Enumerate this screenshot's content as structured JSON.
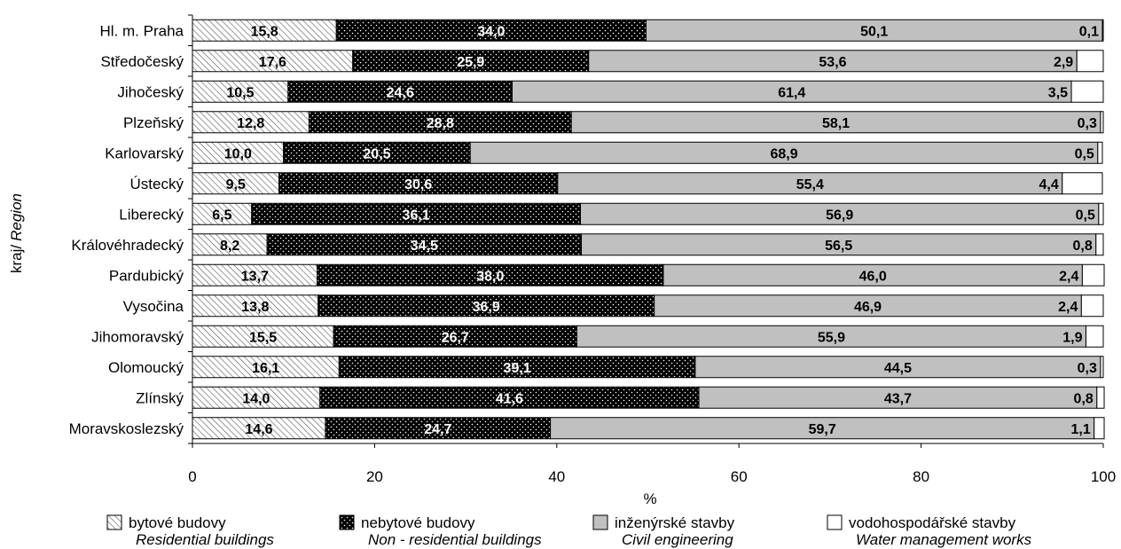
{
  "chart_data": {
    "type": "bar",
    "orientation": "horizontal",
    "stacked": true,
    "categories": [
      "Hl. m. Praha",
      "Středočeský",
      "Jihočeský",
      "Plzeňský",
      "Karlovarský",
      "Ústecký",
      "Liberecký",
      "Královéhradecký",
      "Pardubický",
      "Vysočina",
      "Jihomoravský",
      "Olomoucký",
      "Zlínský",
      "Moravskoslezský"
    ],
    "series": [
      {
        "name": "bytové budovy",
        "name_en": "Residential buildings",
        "pattern": "hatch",
        "color": "#ffffff",
        "values": [
          15.8,
          17.6,
          10.5,
          12.8,
          10.0,
          9.5,
          6.5,
          8.2,
          13.7,
          13.8,
          15.5,
          16.1,
          14.0,
          14.6
        ]
      },
      {
        "name": "nebytové budovy",
        "name_en": "Non - residential buildings",
        "pattern": "dots",
        "color": "#000000",
        "values": [
          34.0,
          25.9,
          24.6,
          28.8,
          20.5,
          30.6,
          36.1,
          34.5,
          38.0,
          36.9,
          26.7,
          39.1,
          41.6,
          24.7
        ]
      },
      {
        "name": "inženýrské stavby",
        "name_en": "Civil engineering",
        "pattern": "solid",
        "color": "#c0c0c0",
        "values": [
          50.1,
          53.6,
          61.4,
          58.1,
          68.9,
          55.4,
          56.9,
          56.5,
          46.0,
          46.9,
          55.9,
          44.5,
          43.7,
          59.7
        ]
      },
      {
        "name": "vodohospodářské stavby",
        "name_en": "Water management works",
        "pattern": "solid",
        "color": "#ffffff",
        "values": [
          0.1,
          2.9,
          3.5,
          0.3,
          0.5,
          4.4,
          0.5,
          0.8,
          2.4,
          2.4,
          1.9,
          0.3,
          0.8,
          1.1
        ]
      }
    ],
    "value_labels": [
      [
        "15,8",
        "17,6",
        "10,5",
        "12,8",
        "10,0",
        "9,5",
        "6,5",
        "8,2",
        "13,7",
        "13,8",
        "15,5",
        "16,1",
        "14,0",
        "14,6"
      ],
      [
        "34,0",
        "25,9",
        "24,6",
        "28,8",
        "20,5",
        "30,6",
        "36,1",
        "34,5",
        "38,0",
        "36,9",
        "26,7",
        "39,1",
        "41,6",
        "24,7"
      ],
      [
        "50,1",
        "53,6",
        "61,4",
        "58,1",
        "68,9",
        "55,4",
        "56,9",
        "56,5",
        "46,0",
        "46,9",
        "55,9",
        "44,5",
        "43,7",
        "59,7"
      ],
      [
        "0,1",
        "2,9",
        "3,5",
        "0,3",
        "0,5",
        "4,4",
        "0,5",
        "0,8",
        "2,4",
        "2,4",
        "1,9",
        "0,3",
        "0,8",
        "1,1"
      ]
    ],
    "xlabel": "%",
    "ylabel_cz": "kraj/",
    "ylabel_en": "Region",
    "xlim": [
      0,
      100
    ],
    "xticks": [
      "0",
      "20",
      "40",
      "60",
      "80",
      "100"
    ],
    "grid": false,
    "legend_position": "bottom"
  }
}
